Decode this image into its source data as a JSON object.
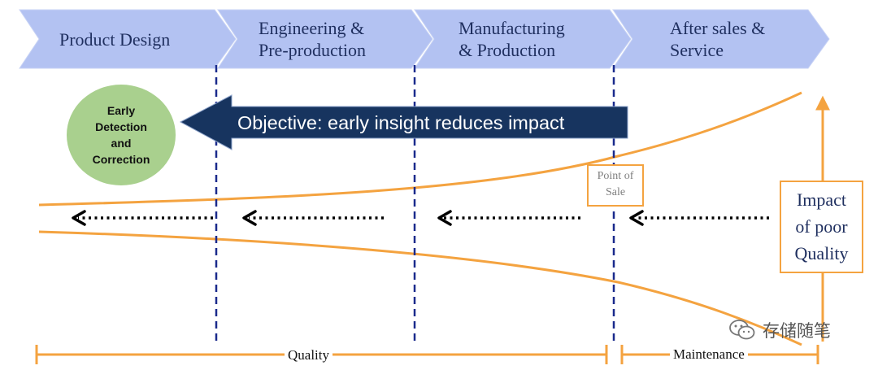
{
  "phases": [
    {
      "line1": "Product Design",
      "line2": ""
    },
    {
      "line1": "Engineering &",
      "line2": "Pre-production"
    },
    {
      "line1": "Manufacturing",
      "line2": "& Production"
    },
    {
      "line1": "After sales &",
      "line2": "Service"
    }
  ],
  "early_detection": {
    "lines": [
      "Early",
      "Detection",
      "and",
      "Correction"
    ]
  },
  "objective": "Objective: early insight reduces impact",
  "point_of_sale": {
    "line1": "Point of",
    "line2": "Sale"
  },
  "impact": {
    "line1": "Impact",
    "line2": "of poor",
    "line3": "Quality"
  },
  "timeline": {
    "quality_label": "Quality",
    "maintenance_label": "Maintenance"
  },
  "watermark": "存储随笔",
  "colors": {
    "chevron_fill": "#b3c2f2",
    "chevron_text": "#1f2f5f",
    "navy": "#17345f",
    "orange": "#f4a340",
    "green": "#a9d08e",
    "divider": "#1a2a8c"
  },
  "icons": {
    "watermark": "wechat-icon"
  }
}
